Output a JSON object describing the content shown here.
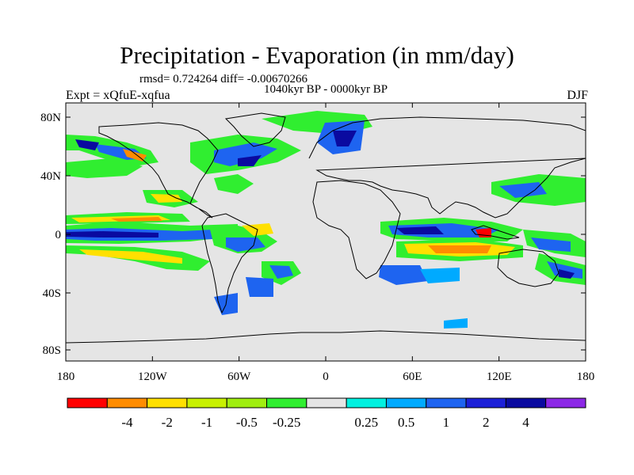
{
  "title": "Precipitation - Evaporation (in mm/day)",
  "stats": "rmsd= 0.724264 diff= -0.00670266",
  "period": "1040kyr BP - 0000kyr BP",
  "experiment": "Expt = xQfuE-xqfua",
  "season": "DJF",
  "axes": {
    "lon_ticks": [
      "180",
      "120W",
      "60W",
      "0",
      "60E",
      "120E",
      "180"
    ],
    "lat_ticks": [
      "80N",
      "40N",
      "0",
      "40S",
      "80S"
    ]
  },
  "colorbar": {
    "colors": [
      "#ff0000",
      "#ff8c00",
      "#ffe000",
      "#c8f000",
      "#a0ee10",
      "#30ee30",
      "#e5e5e5",
      "#00f0e0",
      "#00aaff",
      "#1e64f0",
      "#1c20d8",
      "#0a0aa0",
      "#8c28e6"
    ],
    "labels": [
      "-4",
      "-2",
      "-1",
      "-0.5",
      "-0.25",
      "0.25",
      "0.5",
      "1",
      "2",
      "4"
    ]
  },
  "colors": {
    "background": "#e5e5e5",
    "coast": "#000000"
  }
}
